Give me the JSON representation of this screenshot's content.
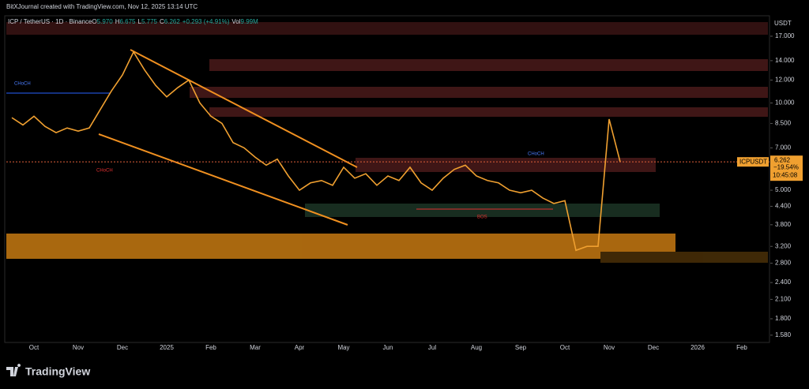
{
  "header": {
    "author": "BitXJournal created with TradingView.com, Nov 12, 2025 13:14 UTC",
    "symbol": "ICP / TetherUS · 1D · Binance",
    "ohlc": [
      {
        "key": "O",
        "value": "5.970"
      },
      {
        "key": "H",
        "value": "6.675"
      },
      {
        "key": "L",
        "value": "5.775"
      },
      {
        "key": "C",
        "value": "6.262"
      }
    ],
    "change": "+0.293 (+4.91%)",
    "volume": {
      "key": "Vol",
      "value": "9.99M"
    }
  },
  "chart_data": {
    "type": "line",
    "currency": "USDT",
    "log_scale": true,
    "categories": [
      null,
      null,
      "Oct",
      null,
      null,
      null,
      "Nov",
      null,
      null,
      null,
      "Dec",
      null,
      null,
      null,
      "2025",
      null,
      null,
      null,
      "Feb",
      null,
      null,
      null,
      "Mar",
      null,
      null,
      null,
      "Apr",
      null,
      null,
      null,
      "May",
      null,
      null,
      null,
      "Jun",
      null,
      null,
      null,
      "Jul",
      null,
      null,
      null,
      "Aug",
      null,
      null,
      null,
      "Sep",
      null,
      null,
      null,
      "Oct",
      null,
      null,
      null,
      "Nov",
      null,
      null,
      null,
      "Dec",
      null,
      null,
      null,
      "2026",
      null,
      null,
      null,
      "Feb",
      null,
      null
    ],
    "series": [
      {
        "name": "ICPUSDT",
        "color": "#f0a030",
        "values": [
          8.9,
          8.4,
          9.0,
          8.3,
          7.9,
          8.2,
          8.0,
          8.2,
          9.5,
          11.0,
          12.5,
          15.0,
          13.0,
          11.5,
          10.5,
          11.3,
          12.0,
          10.0,
          9.0,
          8.5,
          7.3,
          7.0,
          6.5,
          6.1,
          6.4,
          5.6,
          5.0,
          5.3,
          5.4,
          5.2,
          6.0,
          5.5,
          5.7,
          5.2,
          5.6,
          5.4,
          6.0,
          5.3,
          5.0,
          5.5,
          5.9,
          6.1,
          5.6,
          5.4,
          5.3,
          5.0,
          4.9,
          5.0,
          4.7,
          4.5,
          4.6,
          3.1,
          3.2,
          3.2,
          8.8,
          6.262,
          null,
          null,
          null,
          null,
          null,
          null,
          null,
          null,
          null,
          null,
          null,
          null,
          null
        ]
      }
    ],
    "ylim": [
      1.51,
      19.75
    ],
    "yticks": [
      {
        "value": 1.58,
        "label": "1.580"
      },
      {
        "value": 1.8,
        "label": "1.800"
      },
      {
        "value": 2.1,
        "label": "2.100"
      },
      {
        "value": 2.4,
        "label": "2.400"
      },
      {
        "value": 2.8,
        "label": "2.800"
      },
      {
        "value": 3.2,
        "label": "3.200"
      },
      {
        "value": 3.8,
        "label": "3.800"
      },
      {
        "value": 4.4,
        "label": "4.400"
      },
      {
        "value": 5,
        "label": "5.000"
      },
      {
        "value": 7,
        "label": "7.000"
      },
      {
        "value": 8.5,
        "label": "8.500"
      },
      {
        "value": 10,
        "label": "10.000"
      },
      {
        "value": 12,
        "label": "12.000"
      },
      {
        "value": 14,
        "label": "14.000"
      },
      {
        "value": 17,
        "label": "17.000"
      }
    ],
    "last_price": {
      "value": 6.262,
      "label": "6.262",
      "change": "−19.54%",
      "countdown": "10:45:08"
    },
    "annotations": [
      "CHoCH",
      "CHoCH",
      "CHoCH",
      "BOS"
    ]
  },
  "footer": {
    "brand": "TradingView"
  }
}
